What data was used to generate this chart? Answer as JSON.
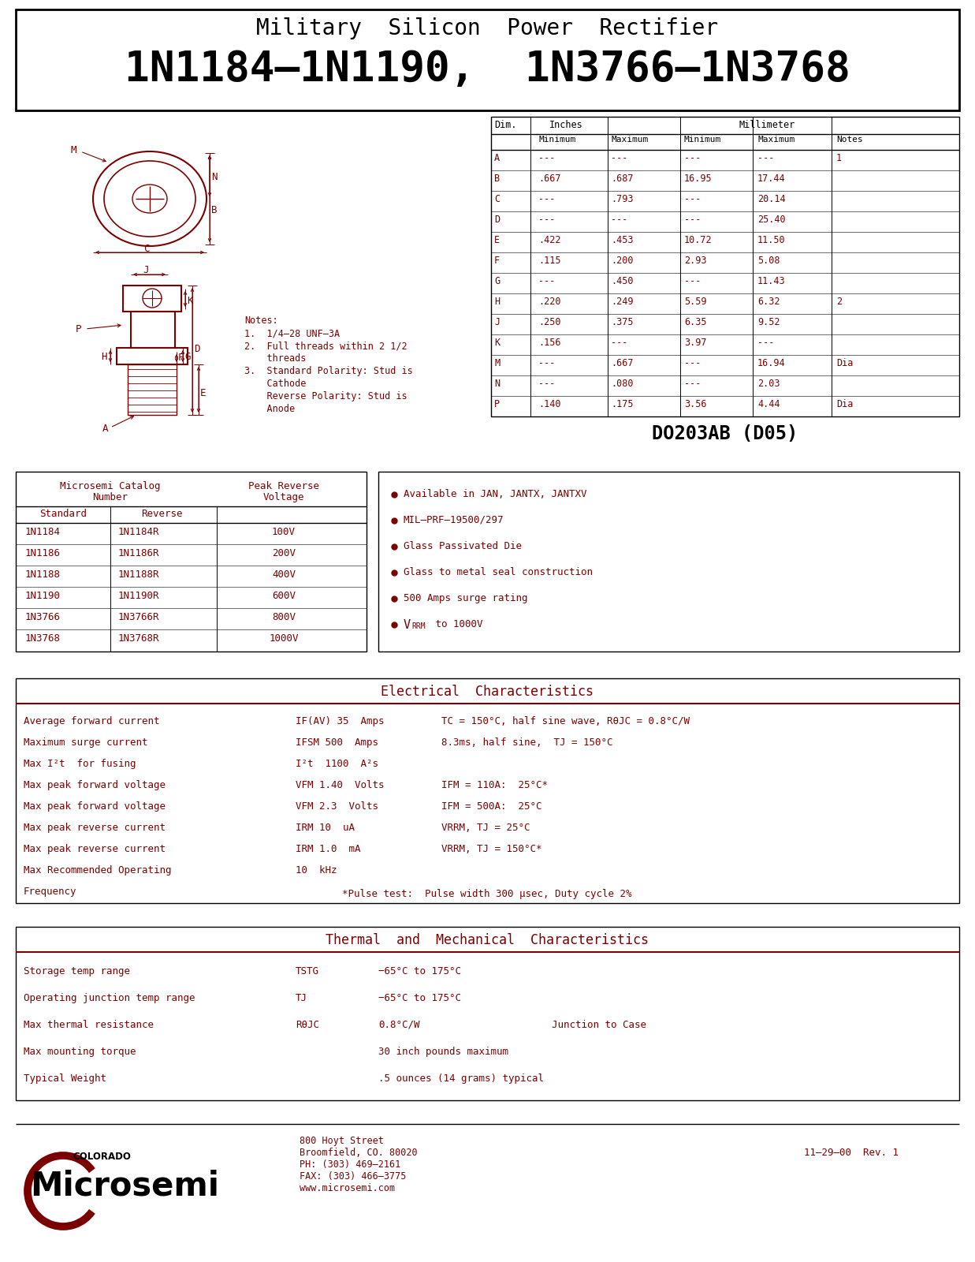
{
  "title_line1": "Military  Silicon  Power  Rectifier",
  "title_line2": "1N1184–1N1190,  1N3766–1N3768",
  "bg_color": "#ffffff",
  "text_color": "#000000",
  "dark_red": "#7B0000",
  "dim_table_rows": [
    [
      "A",
      "---",
      "---",
      "---",
      "---",
      "1"
    ],
    [
      "B",
      ".667",
      ".687",
      "16.95",
      "17.44",
      ""
    ],
    [
      "C",
      "---",
      ".793",
      "---",
      "20.14",
      ""
    ],
    [
      "D",
      "---",
      "---",
      "---",
      "25.40",
      ""
    ],
    [
      "E",
      ".422",
      ".453",
      "10.72",
      "11.50",
      ""
    ],
    [
      "F",
      ".115",
      ".200",
      "2.93",
      "5.08",
      ""
    ],
    [
      "G",
      "---",
      ".450",
      "---",
      "11.43",
      ""
    ],
    [
      "H",
      ".220",
      ".249",
      "5.59",
      "6.32",
      "2"
    ],
    [
      "J",
      ".250",
      ".375",
      "6.35",
      "9.52",
      ""
    ],
    [
      "K",
      ".156",
      "---",
      "3.97",
      "---",
      ""
    ],
    [
      "M",
      "---",
      ".667",
      "---",
      "16.94",
      "Dia"
    ],
    [
      "N",
      "---",
      ".080",
      "---",
      "2.03",
      ""
    ],
    [
      "P",
      ".140",
      ".175",
      "3.56",
      "4.44",
      "Dia"
    ]
  ],
  "package_label": "DO203AB (D05)",
  "catalog_standard": [
    "1N1184",
    "1N1186",
    "1N1188",
    "1N1190",
    "1N3766",
    "1N3768"
  ],
  "catalog_reverse": [
    "1N1184R",
    "1N1186R",
    "1N1188R",
    "1N1190R",
    "1N3766R",
    "1N3768R"
  ],
  "catalog_voltage": [
    "100V",
    "200V",
    "400V",
    "600V",
    "800V",
    "1000V"
  ],
  "features": [
    "Available in JAN, JANTX, JANTXV",
    "MIL–PRF–19500/297",
    "Glass Passivated Die",
    "Glass to metal seal construction",
    "500 Amps surge rating",
    "VRRM to 1000V"
  ],
  "elec_title": "Electrical  Characteristics",
  "elec_left": [
    "Average forward current",
    "Maximum surge current",
    "Max I²t  for fusing",
    "Max peak forward voltage",
    "Max peak forward voltage",
    "Max peak reverse current",
    "Max peak reverse current",
    "Max Recommended Operating",
    "Frequency"
  ],
  "elec_mid": [
    "IF(AV) 35  Amps",
    "IFSM 500  Amps",
    "I²t  1100  A²s",
    "VFM 1.40  Volts",
    "VFM 2.3  Volts",
    "IRM 10  uA",
    "IRM 1.0  mA",
    "10  kHz",
    ""
  ],
  "elec_right": [
    "TC = 150°C, half sine wave, RθJC = 0.8°C/W",
    "8.3ms, half sine,  TJ = 150°C",
    "",
    "IFM = 110A:  25°C*",
    "IFM = 500A:  25°C",
    "VRRM, TJ = 25°C",
    "VRRM, TJ = 150°C*",
    "",
    ""
  ],
  "pulse_note": "*Pulse test:  Pulse width 300 μsec, Duty cycle 2%",
  "thermal_title": "Thermal  and  Mechanical  Characteristics",
  "thermal_left": [
    "Storage temp range",
    "Operating junction temp range",
    "Max thermal resistance",
    "Max mounting torque",
    "Typical Weight"
  ],
  "thermal_sym": [
    "TSTG",
    "TJ",
    "RθJC",
    "",
    ""
  ],
  "thermal_val": [
    "−65°C to 175°C",
    "−65°C to 175°C",
    "0.8°C/W",
    "30 inch pounds maximum",
    ".5 ounces (14 grams) typical"
  ],
  "thermal_note": [
    "",
    "",
    "Junction to Case",
    "",
    ""
  ],
  "footer_address": "800 Hoyt Street\nBroomfield, CO. 80020\nPH: (303) 469–2161\nFAX: (303) 466–3775\nwww.microsemi.com",
  "footer_rev": "11–29–00  Rev. 1",
  "notes_lines": [
    "Notes:",
    "1.  1/4–28 UNF–3A",
    "2.  Full threads within 2 1/2",
    "    threads",
    "3.  Standard Polarity: Stud is",
    "    Cathode",
    "    Reverse Polarity: Stud is",
    "    Anode"
  ]
}
